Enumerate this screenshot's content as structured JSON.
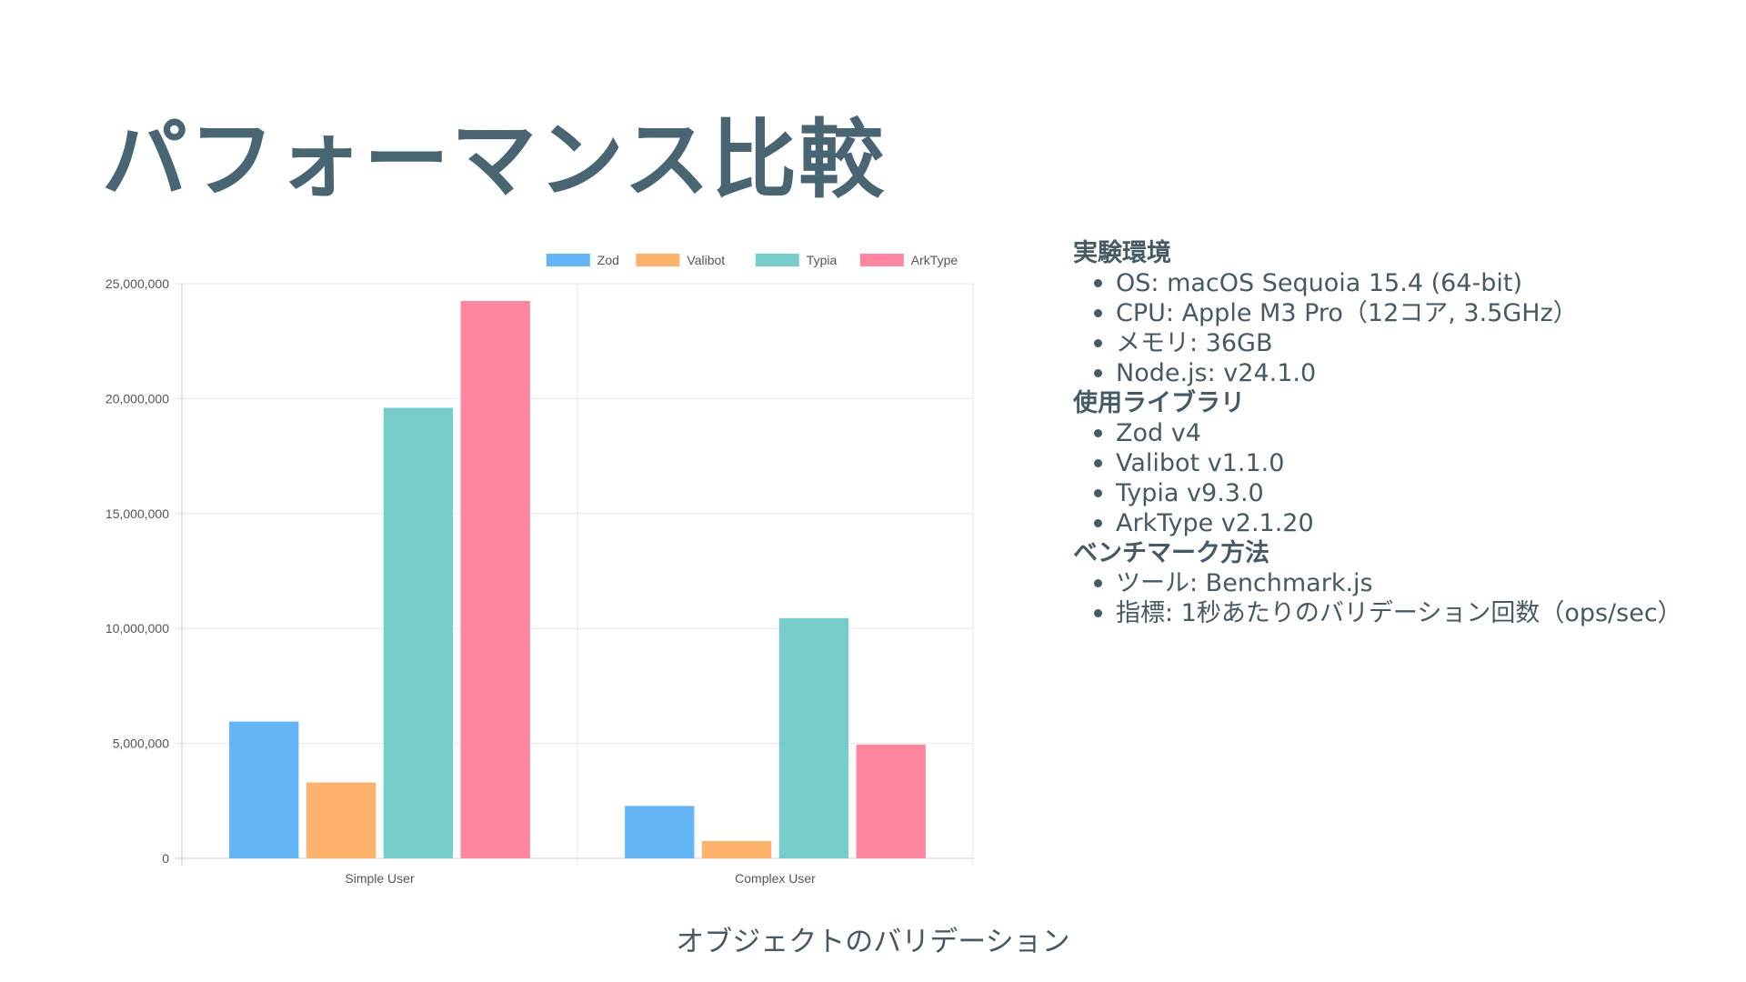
{
  "slide": {
    "title": "パフォーマンス比較",
    "caption": "オブジェクトのバリデーション"
  },
  "info": {
    "sections": [
      {
        "heading": "実験環境",
        "items": [
          "OS: macOS Sequoia 15.4 (64-bit)",
          "CPU: Apple M3 Pro（12コア, 3.5GHz）",
          "メモリ: 36GB",
          "Node.js: v24.1.0"
        ]
      },
      {
        "heading": "使用ライブラリ",
        "items": [
          "Zod v4",
          "Valibot v1.1.0",
          "Typia v9.3.0",
          "ArkType v2.1.20"
        ]
      },
      {
        "heading": "ベンチマーク方法",
        "items": [
          "ツール: Benchmark.js",
          "指標: 1秒あたりのバリデーション回数（ops/sec）"
        ]
      }
    ]
  },
  "chart_data": {
    "type": "bar",
    "title": "",
    "xlabel": "",
    "ylabel": "",
    "categories": [
      "Simple User",
      "Complex User"
    ],
    "series": [
      {
        "name": "Zod",
        "values": [
          5950000,
          2280000
        ],
        "color": "#64b5f6"
      },
      {
        "name": "Valibot",
        "values": [
          3300000,
          750000
        ],
        "color": "#ffb26b"
      },
      {
        "name": "Typia",
        "values": [
          19600000,
          10450000
        ],
        "color": "#76cdcc"
      },
      {
        "name": "ArkType",
        "values": [
          24250000,
          4950000
        ],
        "color": "#ff869e"
      }
    ],
    "ylim": [
      0,
      25000000
    ],
    "yticks": [
      0,
      5000000,
      10000000,
      15000000,
      20000000,
      25000000
    ],
    "ytick_labels": [
      "0",
      "5,000,000",
      "10,000,000",
      "15,000,000",
      "20,000,000",
      "25,000,000"
    ],
    "grid": true,
    "legend": "top"
  }
}
